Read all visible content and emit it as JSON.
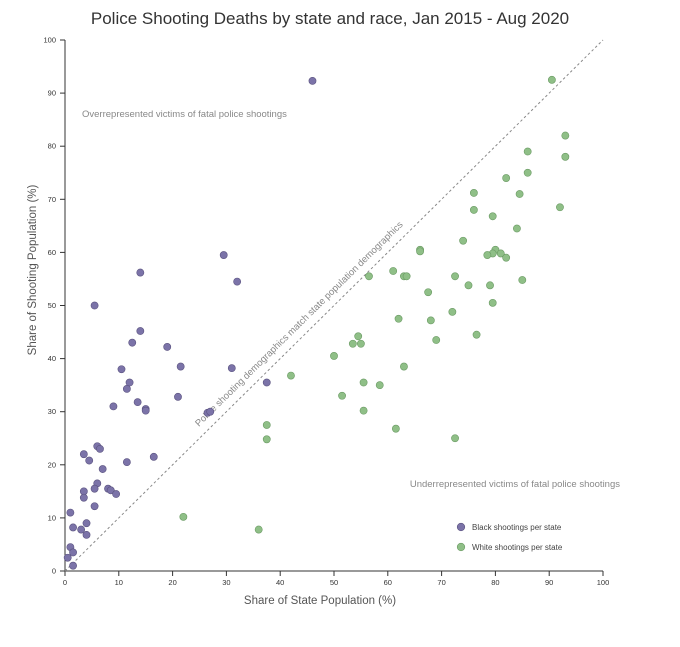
{
  "chart_data": {
    "type": "scatter",
    "title": "Police Shooting Deaths by state and race, Jan 2015 - Aug 2020",
    "xlabel": "Share of State Population (%)",
    "ylabel": "Share of Shooting Population (%)",
    "xlim": [
      0,
      100
    ],
    "ylim": [
      0,
      100
    ],
    "xticks": [
      "0",
      "10",
      "20",
      "30",
      "40",
      "50",
      "60",
      "70",
      "80",
      "90",
      "100"
    ],
    "yticks": [
      "0",
      "10",
      "20",
      "30",
      "40",
      "50",
      "60",
      "70",
      "80",
      "90",
      "100"
    ],
    "grid": false,
    "legend_position": "bottom-right",
    "annotations": {
      "over": "Overrepresented victims of fatal police shootings",
      "under": "Underrepresented victims of fatal police shootings",
      "diagonal": "Police shooting demographics match state population demographics"
    },
    "series": [
      {
        "name": "Black shootings per state",
        "color": "#7b73a8",
        "points": [
          [
            46,
            92.3
          ],
          [
            14,
            56.2
          ],
          [
            29.5,
            59.5
          ],
          [
            5.5,
            50
          ],
          [
            32,
            54.5
          ],
          [
            14,
            45.2
          ],
          [
            12.5,
            43
          ],
          [
            19,
            42.2
          ],
          [
            10.5,
            38
          ],
          [
            21.5,
            38.5
          ],
          [
            31,
            38.2
          ],
          [
            37.5,
            35.5
          ],
          [
            12,
            35.5
          ],
          [
            11.5,
            34.3
          ],
          [
            13.5,
            31.8
          ],
          [
            9,
            31
          ],
          [
            15,
            30.5
          ],
          [
            15,
            30.2
          ],
          [
            21,
            32.8
          ],
          [
            26.5,
            29.8
          ],
          [
            27,
            30
          ],
          [
            6,
            23.5
          ],
          [
            6.5,
            23
          ],
          [
            3.5,
            22
          ],
          [
            16.5,
            21.5
          ],
          [
            4.5,
            20.8
          ],
          [
            11.5,
            20.5
          ],
          [
            7,
            19.2
          ],
          [
            6,
            16.5
          ],
          [
            5.5,
            15.5
          ],
          [
            8,
            15.5
          ],
          [
            8.5,
            15.2
          ],
          [
            3.5,
            15
          ],
          [
            3.5,
            13.8
          ],
          [
            9.5,
            14.5
          ],
          [
            5.5,
            12.2
          ],
          [
            1,
            11
          ],
          [
            4,
            9
          ],
          [
            1.5,
            8.2
          ],
          [
            3,
            7.8
          ],
          [
            4,
            6.8
          ],
          [
            1,
            4.5
          ],
          [
            1.5,
            3.5
          ],
          [
            0.5,
            2.5
          ],
          [
            1.5,
            1
          ]
        ]
      },
      {
        "name": "White shootings per state",
        "color": "#8fbf87",
        "points": [
          [
            90.5,
            92.5
          ],
          [
            93,
            82
          ],
          [
            86,
            79
          ],
          [
            93,
            78
          ],
          [
            82,
            74
          ],
          [
            76,
            71.2
          ],
          [
            86,
            75
          ],
          [
            84.5,
            71
          ],
          [
            76,
            68
          ],
          [
            79.5,
            66.8
          ],
          [
            92,
            68.5
          ],
          [
            84,
            64.5
          ],
          [
            74,
            62.2
          ],
          [
            66,
            60.5
          ],
          [
            66,
            60.2
          ],
          [
            80,
            60.5
          ],
          [
            79.5,
            59.8
          ],
          [
            81,
            59.8
          ],
          [
            78.5,
            59.5
          ],
          [
            82,
            59
          ],
          [
            72.5,
            55.5
          ],
          [
            63,
            55.5
          ],
          [
            63.5,
            55.5
          ],
          [
            61,
            56.5
          ],
          [
            56.5,
            55.5
          ],
          [
            75,
            53.8
          ],
          [
            79,
            53.8
          ],
          [
            85,
            54.8
          ],
          [
            67.5,
            52.5
          ],
          [
            79.5,
            50.5
          ],
          [
            72,
            48.8
          ],
          [
            62,
            47.5
          ],
          [
            68,
            47.2
          ],
          [
            54.5,
            44.2
          ],
          [
            53.5,
            42.8
          ],
          [
            55,
            42.8
          ],
          [
            69,
            43.5
          ],
          [
            76.5,
            44.5
          ],
          [
            50,
            40.5
          ],
          [
            63,
            38.5
          ],
          [
            42,
            36.8
          ],
          [
            55.5,
            35.5
          ],
          [
            58.5,
            35
          ],
          [
            51.5,
            33
          ],
          [
            55.5,
            30.2
          ],
          [
            37.5,
            27.5
          ],
          [
            61.5,
            26.8
          ],
          [
            72.5,
            25
          ],
          [
            37.5,
            24.8
          ],
          [
            22,
            10.2
          ],
          [
            36,
            7.8
          ]
        ]
      }
    ]
  }
}
